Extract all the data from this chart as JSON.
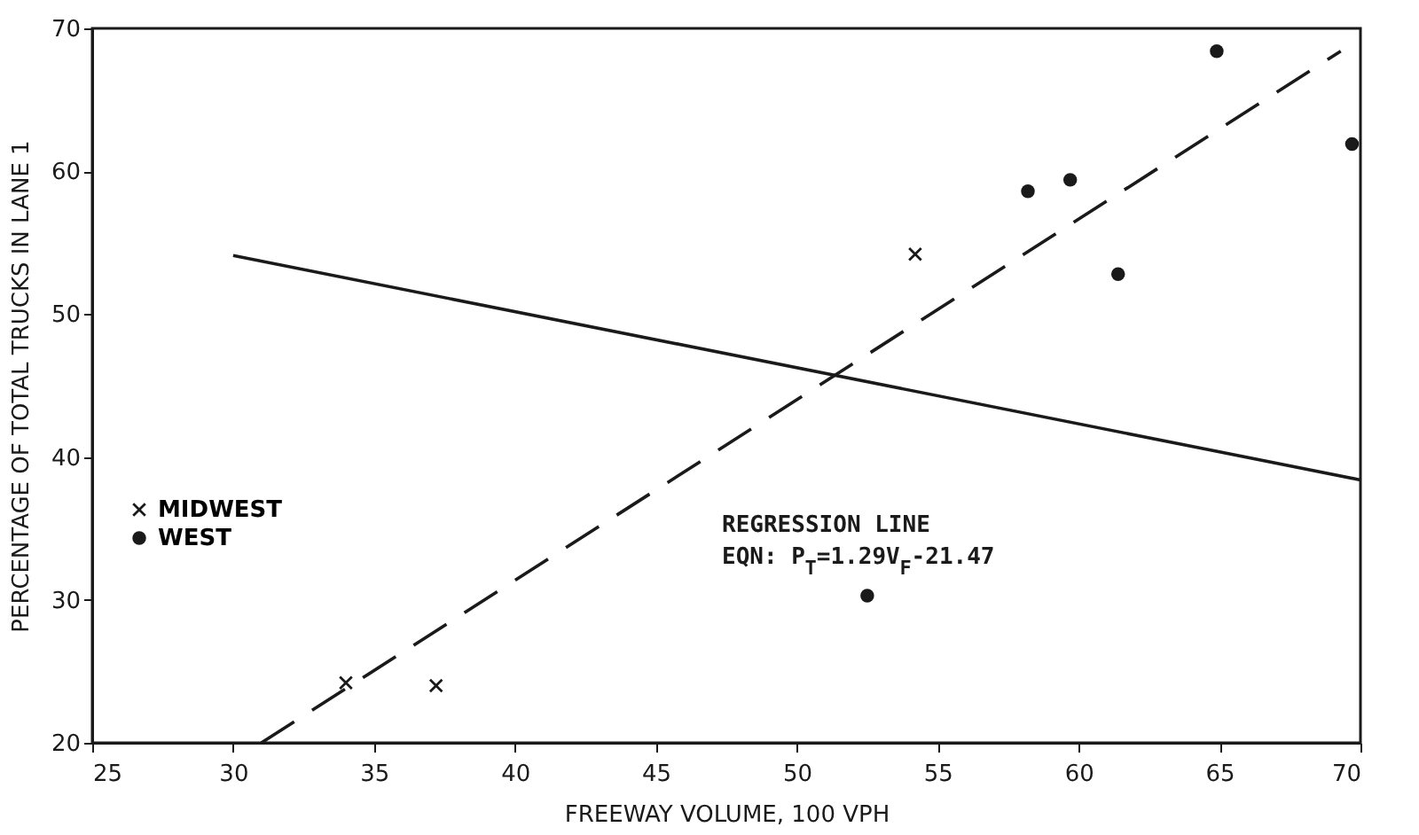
{
  "chart_data": {
    "type": "scatter",
    "xlabel": "FREEWAY VOLUME, 100 VPH",
    "ylabel": "PERCENTAGE OF TOTAL TRUCKS IN LANE 1",
    "xlim": [
      25,
      70
    ],
    "xticks": [
      25,
      30,
      35,
      40,
      45,
      50,
      55,
      60,
      65,
      70
    ],
    "ylim": [
      20,
      70
    ],
    "yticks": [
      20,
      30,
      40,
      50,
      60,
      70
    ],
    "grid": false,
    "legend": "left",
    "series": [
      {
        "name": "MIDWEST",
        "marker": "cross",
        "color": "#1a1a1a",
        "x": [
          34.0,
          37.2,
          54.2
        ],
        "values": [
          24.2,
          24.0,
          54.2
        ]
      },
      {
        "name": "WEST",
        "marker": "circle",
        "color": "#1a1a1a",
        "x": [
          58.2,
          59.7,
          61.4,
          64.9,
          69.7,
          52.5
        ],
        "values": [
          58.6,
          59.4,
          52.8,
          68.4,
          61.9,
          30.3
        ]
      },
      {
        "type": "line",
        "line_style": "solid",
        "color": "#1a1a1a",
        "x": [
          30.0,
          70.0
        ],
        "values": [
          54.1,
          38.4
        ]
      },
      {
        "type": "line",
        "line_style": "dashed",
        "color": "#1a1a1a",
        "x": [
          31.0,
          69.3
        ],
        "values": [
          20.0,
          68.4
        ]
      }
    ],
    "annotations": [
      "REGRESSION LINE",
      "EQN: P$_{T}$=1.29V$_{F}$-21.47"
    ]
  }
}
